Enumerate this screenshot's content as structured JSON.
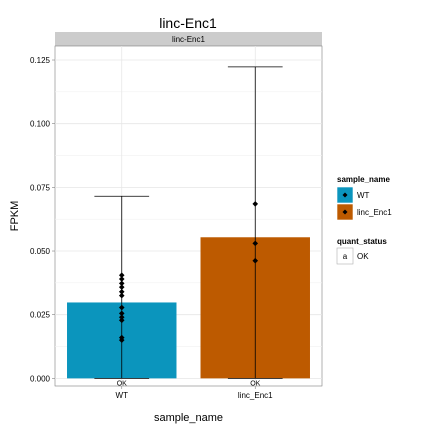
{
  "chart_data": {
    "type": "bar",
    "title": "linc-Enc1",
    "facet_label": "linc-Enc1",
    "xlabel": "sample_name",
    "ylabel": "FPKM",
    "ylim": [
      -0.003,
      0.1305
    ],
    "yticks": [
      "0.000",
      "0.025",
      "0.050",
      "0.075",
      "0.100",
      "0.125"
    ],
    "ytick_values": [
      0.0,
      0.025,
      0.05,
      0.075,
      0.1,
      0.125
    ],
    "grid": true,
    "categories": [
      "WT",
      "linc_Enc1"
    ],
    "values": [
      0.0298,
      0.0554
    ],
    "error_bars": [
      {
        "low": 0.0,
        "high": 0.0715
      },
      {
        "low": 0.0,
        "high": 0.1223
      }
    ],
    "replicates": [
      [
        0.0405,
        0.039,
        0.0373,
        0.0358,
        0.034,
        0.0325,
        0.0278,
        0.0255,
        0.024,
        0.0228,
        0.016,
        0.015
      ],
      [
        0.0685,
        0.053,
        0.0462
      ]
    ],
    "bar_labels": [
      "OK",
      "OK"
    ],
    "colors": [
      "#0b95bd",
      "#bd5a00"
    ],
    "legend_placement": "right",
    "legend": {
      "sample_name": {
        "title": "sample_name",
        "entries": [
          "WT",
          "linc_Enc1"
        ]
      },
      "quant_status": {
        "title": "quant_status",
        "key_glyph": "a",
        "entries": [
          "OK"
        ]
      }
    }
  }
}
